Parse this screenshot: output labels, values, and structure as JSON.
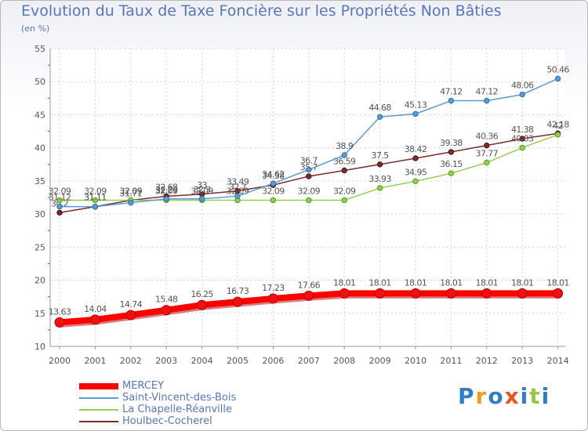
{
  "title": "Evolution du Taux de Taxe Foncière sur les Propriétés Non Bâties",
  "unit": "(en %)",
  "logo": "Proxiti",
  "chart_data": {
    "type": "line",
    "title": "Evolution du Taux de Taxe Foncière sur les Propriétés Non Bâties",
    "ylabel": "(en %)",
    "xlabel": "",
    "x": [
      "2000",
      "2001",
      "2002",
      "2003",
      "2004",
      "2005",
      "2006",
      "2007",
      "2008",
      "2009",
      "2010",
      "2011",
      "2012",
      "2013",
      "2014"
    ],
    "ylim": [
      10,
      55
    ],
    "yticks": [
      10,
      15,
      20,
      25,
      30,
      35,
      40,
      45,
      50,
      55
    ],
    "grid": true,
    "legend_position": "bottom-left",
    "series": [
      {
        "name": "MERCEY",
        "color": "#ff0000",
        "values": [
          13.63,
          14.04,
          14.74,
          15.48,
          16.25,
          16.73,
          17.23,
          17.66,
          18.01,
          18.01,
          18.01,
          18.01,
          18.01,
          18.01,
          18.01
        ],
        "labels": [
          "13.63",
          "14.04",
          "14.74",
          "15.48",
          "16.25",
          "16.73",
          "17.23",
          "17.66",
          "18.01",
          "18.01",
          "18.01",
          "18.01",
          "18.01",
          "18.01",
          "18.01"
        ]
      },
      {
        "name": "Saint-Vincent-des-Bois",
        "color": "#5b9bd5",
        "values": [
          31.12,
          31.11,
          31.71,
          32.29,
          32.3,
          32.7,
          34.62,
          36.7,
          38.9,
          44.68,
          45.13,
          47.12,
          47.12,
          48.06,
          50.46
        ],
        "labels": [
          "31.12",
          "31.11",
          "31.71",
          "32.29",
          "32.3",
          "32.7",
          "34.62",
          "36.7",
          "38.9",
          "44.68",
          "45.13",
          "47.12",
          "47.12",
          "48.06",
          "50.46"
        ]
      },
      {
        "name": "La Chapelle-Réanville",
        "color": "#92d050",
        "values": [
          32.09,
          32.09,
          32.09,
          32.09,
          32.09,
          32.09,
          32.09,
          32.09,
          32.09,
          33.93,
          34.95,
          36.15,
          37.77,
          40.03,
          42
        ],
        "labels": [
          "32.09",
          "32.09",
          "32.09",
          "32.09",
          "32.09",
          "32.09",
          "32.09",
          "32.09",
          "32.09",
          "33.93",
          "34.95",
          "36.15",
          "37.77",
          "40.03",
          "42"
        ]
      },
      {
        "name": "Houlbec-Cocherel",
        "color": "#7b2c2c",
        "values": [
          30.2,
          31.11,
          32.09,
          32.68,
          33,
          33.49,
          34.38,
          35.7,
          36.59,
          37.5,
          38.42,
          39.38,
          40.36,
          41.38,
          42.18
        ],
        "labels": [
          "30.2",
          "31.11",
          "32.09",
          "32.68",
          "33",
          "33.49",
          "34.38",
          "35.7",
          "36.59",
          "37.5",
          "38.42",
          "39.38",
          "40.36",
          "41.38",
          "42.18"
        ]
      }
    ]
  }
}
